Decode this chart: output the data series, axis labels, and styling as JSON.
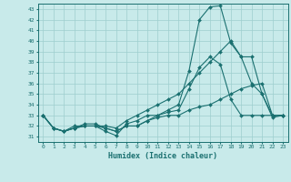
{
  "title": "",
  "xlabel": "Humidex (Indice chaleur)",
  "ylabel": "",
  "background_color": "#c8eaea",
  "grid_color": "#9ecece",
  "line_color": "#1a7070",
  "xlim": [
    -0.5,
    23.5
  ],
  "ylim": [
    30.5,
    43.5
  ],
  "xticks": [
    0,
    1,
    2,
    3,
    4,
    5,
    6,
    7,
    8,
    9,
    10,
    11,
    12,
    13,
    14,
    15,
    16,
    17,
    18,
    19,
    20,
    21,
    22,
    23
  ],
  "yticks": [
    31,
    32,
    33,
    34,
    35,
    36,
    37,
    38,
    39,
    40,
    41,
    42,
    43
  ],
  "line1_x": [
    0,
    1,
    2,
    3,
    4,
    5,
    6,
    7,
    8,
    9,
    10,
    11,
    12,
    13,
    14,
    15,
    16,
    17,
    18,
    19,
    20,
    21,
    22,
    23
  ],
  "line1_y": [
    33,
    31.8,
    31.5,
    31.8,
    32.2,
    32.2,
    31.8,
    31.5,
    32,
    32,
    32.5,
    33,
    33.5,
    34,
    37.2,
    42,
    43.2,
    43.3,
    39.8,
    38.5,
    38.5,
    35,
    32.8,
    33
  ],
  "line2_x": [
    0,
    1,
    2,
    3,
    4,
    5,
    6,
    7,
    8,
    9,
    10,
    11,
    12,
    13,
    14,
    15,
    16,
    17,
    18,
    19,
    20,
    21,
    22,
    23
  ],
  "line2_y": [
    33,
    31.8,
    31.5,
    32,
    32,
    32,
    32,
    31.8,
    32.5,
    33,
    33.5,
    34,
    34.5,
    35,
    36,
    37,
    38,
    39,
    40,
    38.5,
    36,
    35,
    33,
    33
  ],
  "line3_x": [
    0,
    1,
    2,
    3,
    4,
    5,
    6,
    7,
    8,
    9,
    10,
    11,
    12,
    13,
    14,
    15,
    16,
    17,
    18,
    19,
    20,
    21,
    22,
    23
  ],
  "line3_y": [
    33,
    31.8,
    31.5,
    31.8,
    32,
    32,
    31.5,
    31.1,
    32.2,
    32.5,
    33,
    33,
    33.3,
    33.5,
    35.5,
    37.5,
    38.5,
    37.8,
    34.5,
    33,
    33,
    33,
    33,
    33
  ],
  "line4_x": [
    0,
    1,
    2,
    3,
    4,
    5,
    6,
    7,
    8,
    9,
    10,
    11,
    12,
    13,
    14,
    15,
    16,
    17,
    18,
    19,
    20,
    21,
    22,
    23
  ],
  "line4_y": [
    33,
    31.8,
    31.5,
    31.8,
    32,
    32,
    31.8,
    31.5,
    32,
    32,
    32.5,
    32.8,
    33,
    33,
    33.5,
    33.8,
    34,
    34.5,
    35,
    35.5,
    35.8,
    36,
    33,
    33
  ]
}
